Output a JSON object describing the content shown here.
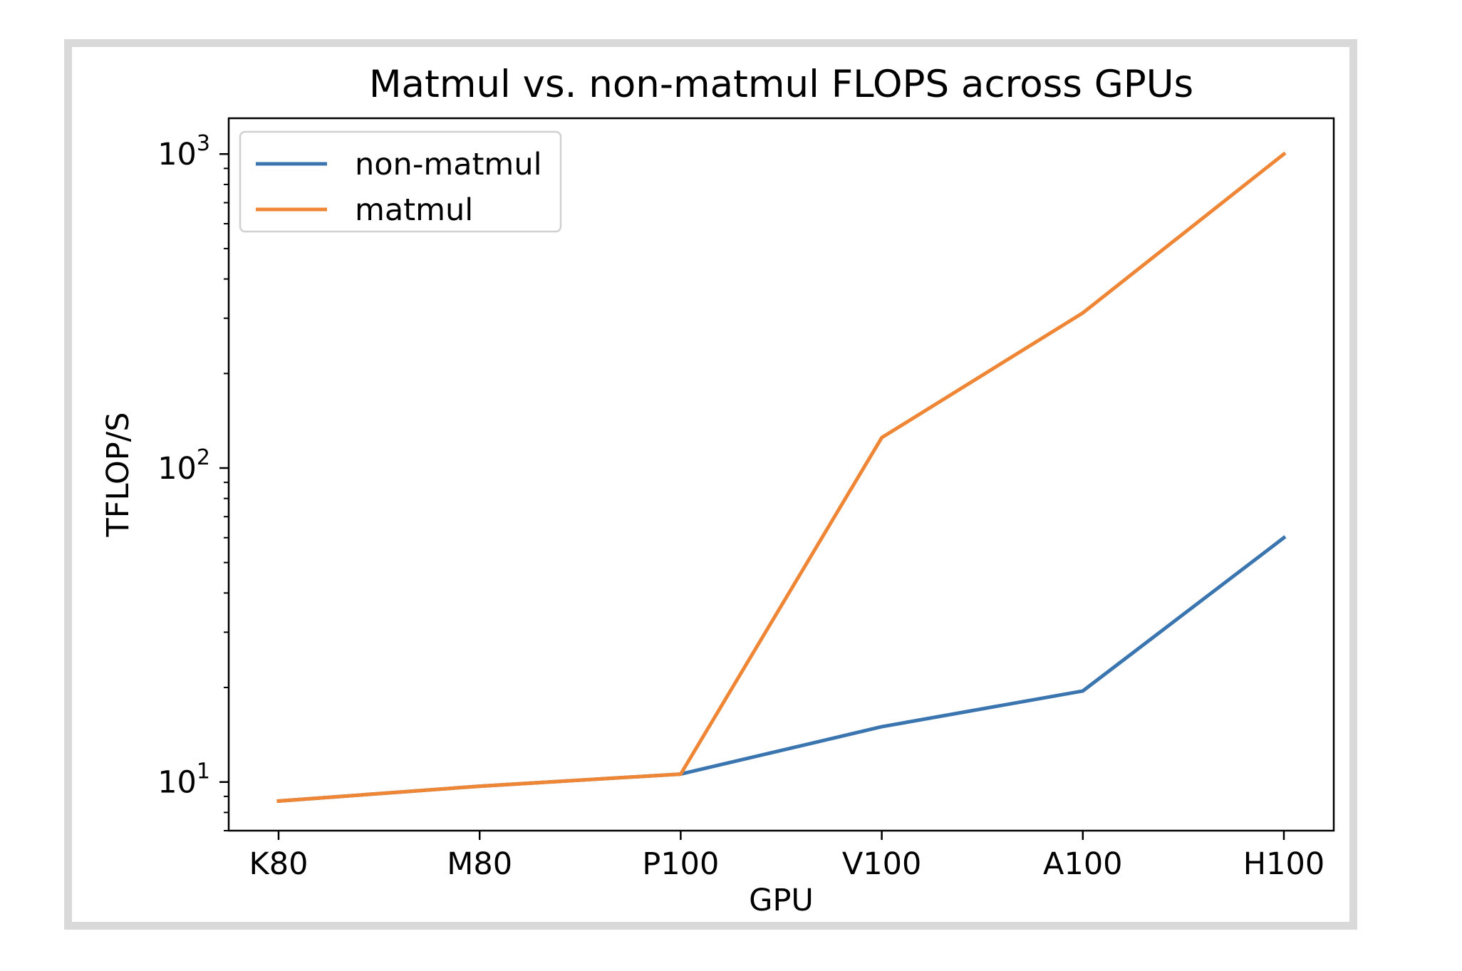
{
  "chart_data": {
    "type": "line",
    "title": "Matmul vs. non-matmul FLOPS across GPUs",
    "xlabel": "GPU",
    "ylabel": "TFLOP/S",
    "yscale": "log",
    "ylim": [
      7,
      1300
    ],
    "categories": [
      "K80",
      "M80",
      "P100",
      "V100",
      "A100",
      "H100"
    ],
    "ytick_labels": [
      {
        "value": 10,
        "base": "10",
        "exp": "1"
      },
      {
        "value": 100,
        "base": "10",
        "exp": "2"
      },
      {
        "value": 1000,
        "base": "10",
        "exp": "3"
      }
    ],
    "grid": false,
    "legend_position": "top-left",
    "series": [
      {
        "name": "non-matmul",
        "color": "#3a75b0",
        "values": [
          8.7,
          9.7,
          10.6,
          15,
          19.5,
          60
        ]
      },
      {
        "name": "matmul",
        "color": "#ef8636",
        "values": [
          8.7,
          9.7,
          10.6,
          125,
          312,
          1000
        ]
      }
    ]
  }
}
